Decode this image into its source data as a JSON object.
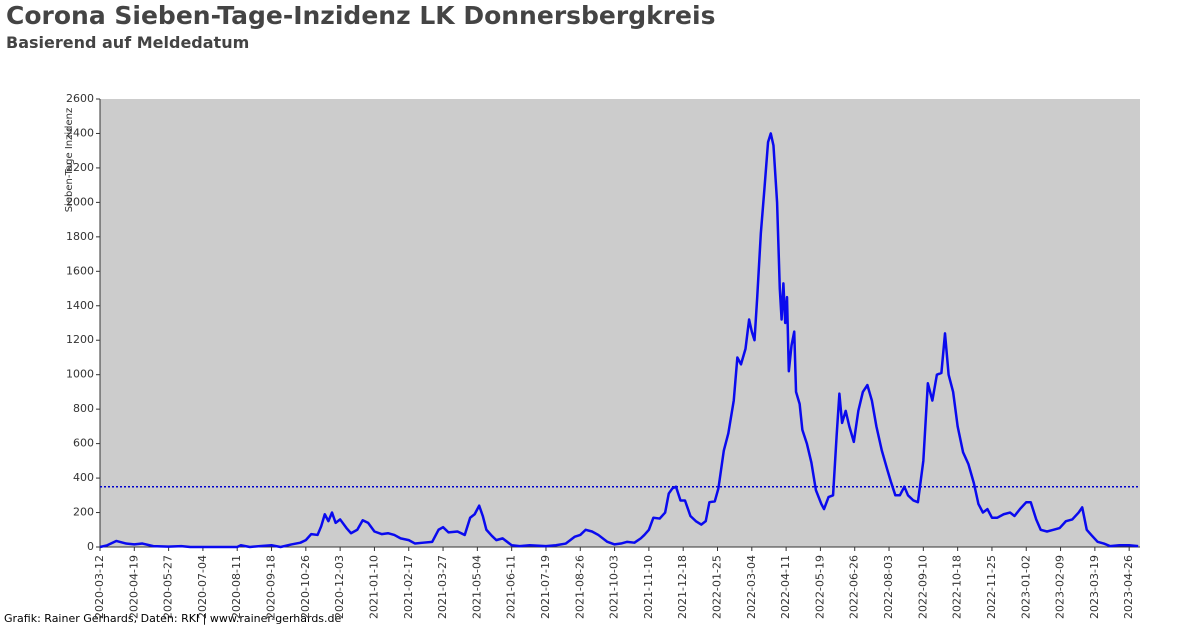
{
  "chart_data": {
    "type": "line",
    "title": "Corona Sieben-Tage-Inzidenz LK Donnersbergkreis",
    "subtitle": "Basierend auf Meldedatum",
    "ylabel": "Sieben-Tage Inzidenz",
    "footer": "Grafik: Rainer Gerhards, Daten: RKI | www.rainer-gerhards.de",
    "xlim": [
      "2020-03-12",
      "2023-05-08"
    ],
    "xticks": [
      "2020-03-12",
      "2020-04-19",
      "2020-05-27",
      "2020-07-04",
      "2020-08-11",
      "2020-09-18",
      "2020-10-26",
      "2020-12-03",
      "2021-01-10",
      "2021-02-17",
      "2021-03-27",
      "2021-05-04",
      "2021-06-11",
      "2021-07-19",
      "2021-08-26",
      "2021-10-03",
      "2021-11-10",
      "2021-12-18",
      "2022-01-25",
      "2022-03-04",
      "2022-04-11",
      "2022-05-19",
      "2022-06-26",
      "2022-08-03",
      "2022-09-10",
      "2022-10-18",
      "2022-11-25",
      "2023-01-02",
      "2023-02-09",
      "2023-03-19",
      "2023-04-26"
    ],
    "ylim": [
      0,
      2600
    ],
    "yticks": [
      0,
      200,
      400,
      600,
      800,
      1000,
      1200,
      1400,
      1600,
      1800,
      2000,
      2200,
      2400,
      2600
    ],
    "reference_line": {
      "value": 350,
      "color": "#0000cc"
    },
    "background": "#cccccc",
    "series": [
      {
        "name": "Sieben-Tage Inzidenz",
        "color": "#0a0aee",
        "x": [
          "2020-03-12",
          "2020-03-20",
          "2020-03-30",
          "2020-04-10",
          "2020-04-19",
          "2020-04-28",
          "2020-05-10",
          "2020-05-27",
          "2020-06-10",
          "2020-06-20",
          "2020-07-04",
          "2020-07-20",
          "2020-08-11",
          "2020-08-15",
          "2020-08-25",
          "2020-09-05",
          "2020-09-18",
          "2020-09-28",
          "2020-10-10",
          "2020-10-20",
          "2020-10-26",
          "2020-11-01",
          "2020-11-08",
          "2020-11-12",
          "2020-11-16",
          "2020-11-20",
          "2020-11-24",
          "2020-11-28",
          "2020-12-03",
          "2020-12-10",
          "2020-12-15",
          "2020-12-22",
          "2020-12-28",
          "2021-01-03",
          "2021-01-10",
          "2021-01-18",
          "2021-01-25",
          "2021-02-01",
          "2021-02-08",
          "2021-02-17",
          "2021-02-24",
          "2021-03-05",
          "2021-03-15",
          "2021-03-22",
          "2021-03-27",
          "2021-04-02",
          "2021-04-12",
          "2021-04-20",
          "2021-04-26",
          "2021-05-01",
          "2021-05-06",
          "2021-05-10",
          "2021-05-14",
          "2021-05-20",
          "2021-05-25",
          "2021-06-01",
          "2021-06-11",
          "2021-06-20",
          "2021-07-01",
          "2021-07-19",
          "2021-07-30",
          "2021-08-10",
          "2021-08-20",
          "2021-08-26",
          "2021-09-01",
          "2021-09-08",
          "2021-09-15",
          "2021-09-25",
          "2021-10-03",
          "2021-10-10",
          "2021-10-17",
          "2021-10-25",
          "2021-11-01",
          "2021-11-05",
          "2021-11-10",
          "2021-11-15",
          "2021-11-22",
          "2021-11-28",
          "2021-12-02",
          "2021-12-06",
          "2021-12-10",
          "2021-12-15",
          "2021-12-20",
          "2021-12-26",
          "2022-01-01",
          "2022-01-07",
          "2022-01-12",
          "2022-01-16",
          "2022-01-22",
          "2022-01-26",
          "2022-02-01",
          "2022-02-06",
          "2022-02-12",
          "2022-02-16",
          "2022-02-20",
          "2022-02-25",
          "2022-03-01",
          "2022-03-04",
          "2022-03-07",
          "2022-03-10",
          "2022-03-14",
          "2022-03-18",
          "2022-03-22",
          "2022-03-25",
          "2022-03-28",
          "2022-04-01",
          "2022-04-04",
          "2022-04-06",
          "2022-04-08",
          "2022-04-10",
          "2022-04-12",
          "2022-04-14",
          "2022-04-17",
          "2022-04-20",
          "2022-04-22",
          "2022-04-26",
          "2022-04-29",
          "2022-05-04",
          "2022-05-09",
          "2022-05-14",
          "2022-05-20",
          "2022-05-23",
          "2022-05-28",
          "2022-06-02",
          "2022-06-06",
          "2022-06-09",
          "2022-06-12",
          "2022-06-16",
          "2022-06-20",
          "2022-06-25",
          "2022-06-30",
          "2022-07-05",
          "2022-07-10",
          "2022-07-15",
          "2022-07-20",
          "2022-07-26",
          "2022-08-01",
          "2022-08-05",
          "2022-08-10",
          "2022-08-15",
          "2022-08-20",
          "2022-08-24",
          "2022-08-30",
          "2022-09-04",
          "2022-09-10",
          "2022-09-15",
          "2022-09-20",
          "2022-09-25",
          "2022-09-30",
          "2022-10-04",
          "2022-10-08",
          "2022-10-13",
          "2022-10-18",
          "2022-10-24",
          "2022-10-30",
          "2022-11-05",
          "2022-11-10",
          "2022-11-15",
          "2022-11-20",
          "2022-11-25",
          "2022-12-01",
          "2022-12-08",
          "2022-12-15",
          "2022-12-20",
          "2022-12-26",
          "2023-01-02",
          "2023-01-07",
          "2023-01-13",
          "2023-01-18",
          "2023-01-25",
          "2023-02-01",
          "2023-02-08",
          "2023-02-15",
          "2023-02-22",
          "2023-03-01",
          "2023-03-05",
          "2023-03-10",
          "2023-03-15",
          "2023-03-22",
          "2023-03-29",
          "2023-04-05",
          "2023-04-15",
          "2023-04-26",
          "2023-05-06"
        ],
        "values": [
          0,
          10,
          35,
          20,
          15,
          20,
          5,
          2,
          5,
          0,
          0,
          0,
          0,
          10,
          0,
          5,
          10,
          0,
          15,
          25,
          40,
          75,
          70,
          120,
          190,
          150,
          200,
          140,
          160,
          110,
          80,
          100,
          155,
          140,
          90,
          75,
          80,
          70,
          50,
          40,
          20,
          25,
          30,
          100,
          115,
          85,
          90,
          70,
          170,
          190,
          240,
          180,
          100,
          65,
          40,
          50,
          10,
          5,
          10,
          5,
          10,
          20,
          60,
          70,
          100,
          90,
          70,
          30,
          15,
          20,
          30,
          25,
          50,
          70,
          100,
          170,
          165,
          200,
          310,
          340,
          350,
          270,
          270,
          180,
          150,
          130,
          150,
          260,
          265,
          340,
          560,
          660,
          850,
          1100,
          1060,
          1150,
          1320,
          1250,
          1200,
          1450,
          1820,
          2080,
          2350,
          2400,
          2330,
          2000,
          1500,
          1320,
          1530,
          1300,
          1450,
          1020,
          1170,
          1250,
          900,
          830,
          680,
          600,
          490,
          330,
          250,
          220,
          290,
          300,
          650,
          890,
          720,
          790,
          700,
          610,
          790,
          900,
          940,
          850,
          700,
          560,
          450,
          380,
          300,
          300,
          350,
          300,
          270,
          260,
          500,
          950,
          850,
          1000,
          1010,
          1240,
          1000,
          900,
          700,
          550,
          480,
          370,
          250,
          200,
          220,
          170,
          170,
          190,
          200,
          180,
          220,
          260,
          260,
          160,
          100,
          90,
          100,
          110,
          150,
          160,
          200,
          230,
          100,
          70,
          30,
          20,
          5,
          10,
          10,
          5
        ]
      }
    ]
  }
}
